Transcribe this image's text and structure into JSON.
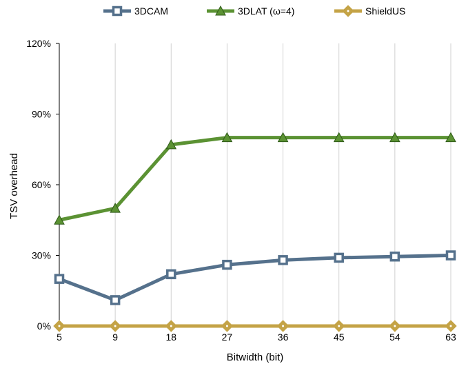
{
  "chart_data": {
    "type": "line",
    "categories": [
      "5",
      "9",
      "18",
      "27",
      "36",
      "45",
      "54",
      "63"
    ],
    "series": [
      {
        "name": "3DCAM",
        "values": [
          20,
          11,
          22,
          26,
          28,
          29,
          29.5,
          30
        ],
        "color": "#55718c",
        "marker": "square"
      },
      {
        "name": "3DLAT (ω=4)",
        "values": [
          45,
          50,
          77,
          80,
          80,
          80,
          80,
          80
        ],
        "color": "#5b9233",
        "marker": "triangle"
      },
      {
        "name": "ShieldUS",
        "values": [
          0,
          0,
          0,
          0,
          0,
          0,
          0,
          0
        ],
        "color": "#c4a346",
        "marker": "diamond"
      }
    ],
    "xlabel": "Bitwidth (bit)",
    "ylabel": "TSV overhead",
    "ylim": [
      0,
      120
    ],
    "yticks": [
      0,
      30,
      60,
      90,
      120
    ],
    "ytick_labels": [
      "0%",
      "30%",
      "60%",
      "90%",
      "120%"
    ],
    "grid": "vertical",
    "legend_position": "top"
  }
}
